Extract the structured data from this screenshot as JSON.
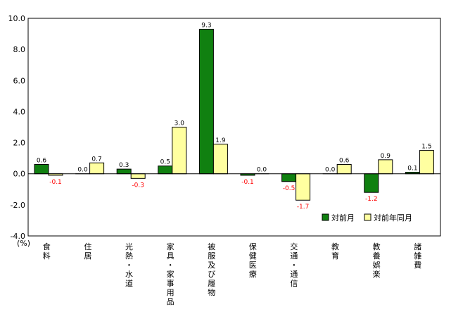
{
  "chart_data": {
    "type": "bar",
    "unit_label": "(%)",
    "ylim": [
      -4.0,
      10.0
    ],
    "yticks": [
      "10.0",
      "8.0",
      "6.0",
      "4.0",
      "2.0",
      "0.0",
      "-2.0",
      "-4.0"
    ],
    "ytick_values": [
      10,
      8,
      6,
      4,
      2,
      0,
      -2,
      -4
    ],
    "grid": false,
    "legend_position": "bottom-right",
    "categories": [
      "食料",
      "住居",
      "光熱・水道",
      "家具・家事用品",
      "被服及び履物",
      "保健医療",
      "交通・通信",
      "教育",
      "教養娯楽",
      "諸雑費"
    ],
    "series": [
      {
        "name": "対前月",
        "color": "#108010",
        "values": [
          0.6,
          0.0,
          0.3,
          0.5,
          9.3,
          -0.1,
          -0.5,
          0.0,
          -1.2,
          0.1
        ],
        "labels": [
          "0.6",
          "0.0",
          "0.3",
          "0.5",
          "9.3",
          "-0.1",
          "-0.5",
          "0.0",
          "-1.2",
          "0.1"
        ]
      },
      {
        "name": "対前年同月",
        "color": "#ffffa0",
        "values": [
          -0.1,
          0.7,
          -0.3,
          3.0,
          1.9,
          0.0,
          -1.7,
          0.6,
          0.9,
          1.5
        ],
        "labels": [
          "-0.1",
          "0.7",
          "-0.3",
          "3.0",
          "1.9",
          "0.0",
          "-1.7",
          "0.6",
          "0.9",
          "1.5"
        ]
      }
    ],
    "negative_label_color": "#ff0000"
  }
}
